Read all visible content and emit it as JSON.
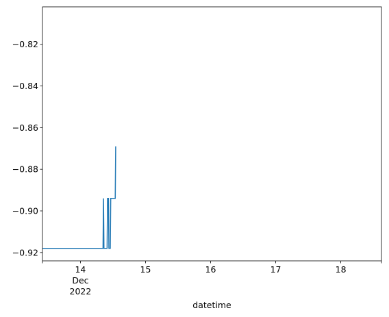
{
  "chart_data": {
    "type": "line",
    "title": "",
    "xlabel": "datetime",
    "ylabel": "",
    "grid": false,
    "legend": "none",
    "x_axis_kind": "date",
    "xlim": [
      "2022-12-13T10:00",
      "2022-12-18T15:00"
    ],
    "ylim": [
      -0.924,
      -0.802
    ],
    "x_ticks": [
      {
        "value": "2022-12-14T00:00",
        "label": "14",
        "sublabels": [
          "Dec",
          "2022"
        ]
      },
      {
        "value": "2022-12-15T00:00",
        "label": "15",
        "sublabels": []
      },
      {
        "value": "2022-12-16T00:00",
        "label": "16",
        "sublabels": []
      },
      {
        "value": "2022-12-17T00:00",
        "label": "17",
        "sublabels": []
      },
      {
        "value": "2022-12-18T00:00",
        "label": "18",
        "sublabels": []
      }
    ],
    "y_ticks": [
      {
        "value": -0.92,
        "label": "−0.92"
      },
      {
        "value": -0.9,
        "label": "−0.90"
      },
      {
        "value": -0.88,
        "label": "−0.88"
      },
      {
        "value": -0.86,
        "label": "−0.86"
      },
      {
        "value": -0.84,
        "label": "−0.84"
      },
      {
        "value": -0.82,
        "label": "−0.82"
      }
    ],
    "series": [
      {
        "color": "#1f77b4",
        "points": [
          {
            "x": "2022-12-13T10:00",
            "y": -0.918
          },
          {
            "x": "2022-12-14T08:20",
            "y": -0.918
          },
          {
            "x": "2022-12-14T08:30",
            "y": -0.894
          },
          {
            "x": "2022-12-14T08:40",
            "y": -0.918
          },
          {
            "x": "2022-12-14T09:50",
            "y": -0.918
          },
          {
            "x": "2022-12-14T10:00",
            "y": -0.894
          },
          {
            "x": "2022-12-14T10:20",
            "y": -0.894
          },
          {
            "x": "2022-12-14T10:30",
            "y": -0.918
          },
          {
            "x": "2022-12-14T11:00",
            "y": -0.918
          },
          {
            "x": "2022-12-14T11:10",
            "y": -0.894
          },
          {
            "x": "2022-12-14T12:50",
            "y": -0.894
          },
          {
            "x": "2022-12-14T13:00",
            "y": -0.869
          }
        ]
      }
    ]
  }
}
